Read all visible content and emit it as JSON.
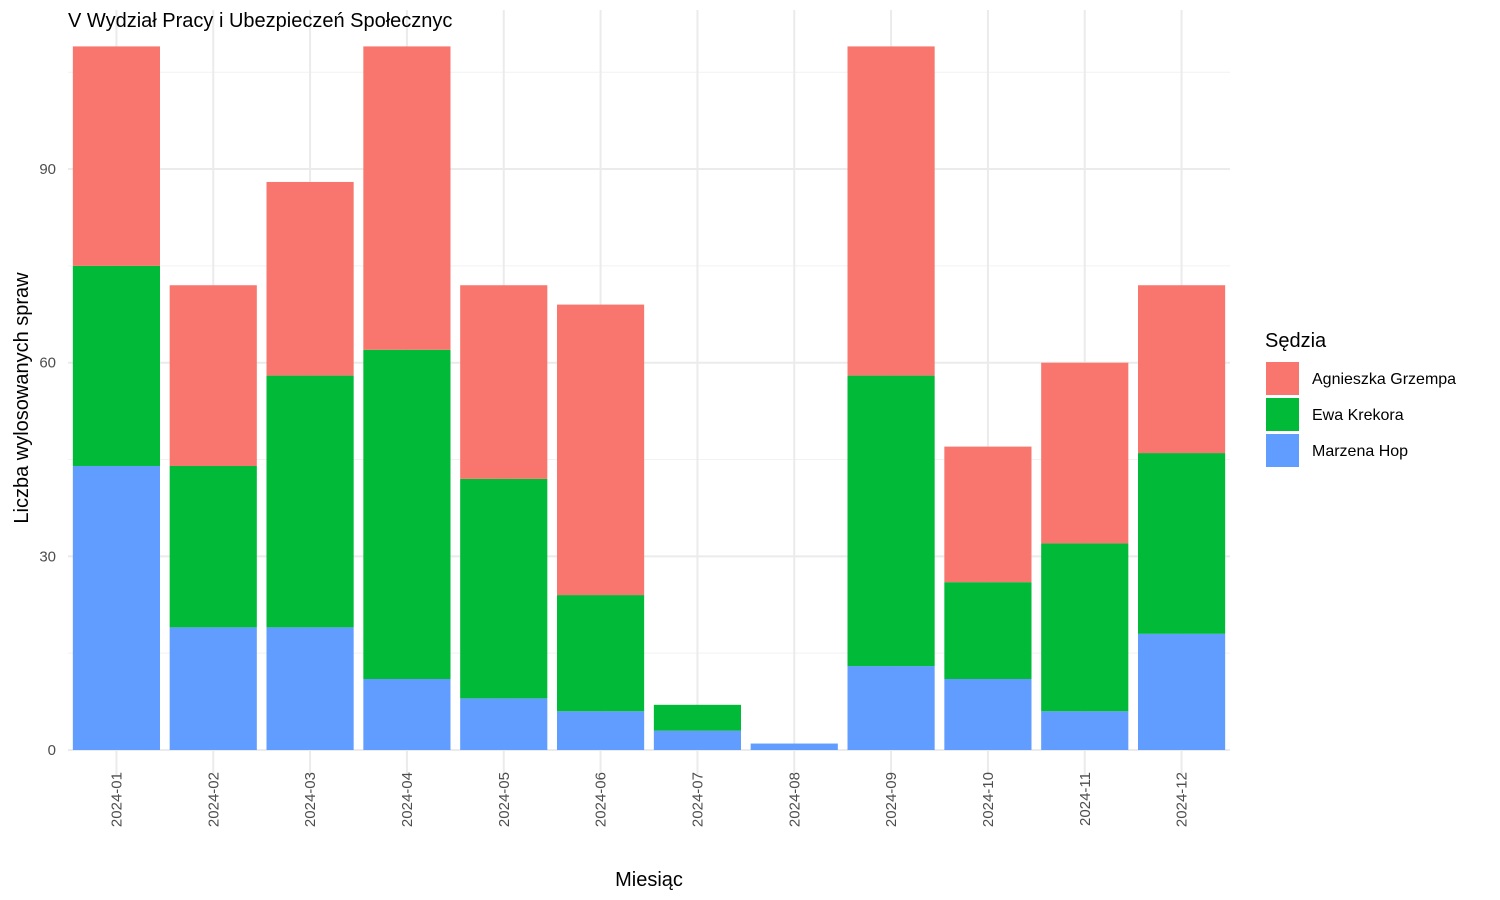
{
  "chart_data": {
    "type": "bar",
    "stacked": true,
    "title": "V Wydział Pracy i Ubezpieczeń Społecznyc",
    "xlabel": "Miesiąc",
    "ylabel": "Liczba wylosowanych spraw",
    "ylim": [
      0,
      110
    ],
    "yticks": [
      0,
      30,
      60,
      90
    ],
    "grid": true,
    "legend_position": "right",
    "legend_title": "Sędzia",
    "categories": [
      "2024-01",
      "2024-02",
      "2024-03",
      "2024-04",
      "2024-05",
      "2024-06",
      "2024-07",
      "2024-08",
      "2024-09",
      "2024-10",
      "2024-11",
      "2024-12"
    ],
    "series": [
      {
        "name": "Marzena Hop",
        "color": "#619CFF",
        "values": [
          44,
          19,
          19,
          11,
          8,
          6,
          3,
          1,
          13,
          11,
          6,
          18
        ]
      },
      {
        "name": "Ewa Krekora",
        "color": "#00BA38",
        "values": [
          31,
          25,
          39,
          51,
          34,
          18,
          4,
          0,
          45,
          15,
          26,
          28
        ]
      },
      {
        "name": "Agnieszka Grzempa",
        "color": "#F8766D",
        "values": [
          34,
          28,
          30,
          47,
          30,
          45,
          0,
          0,
          51,
          21,
          28,
          26
        ]
      }
    ],
    "legend_order": [
      "Agnieszka Grzempa",
      "Ewa Krekora",
      "Marzena Hop"
    ]
  }
}
